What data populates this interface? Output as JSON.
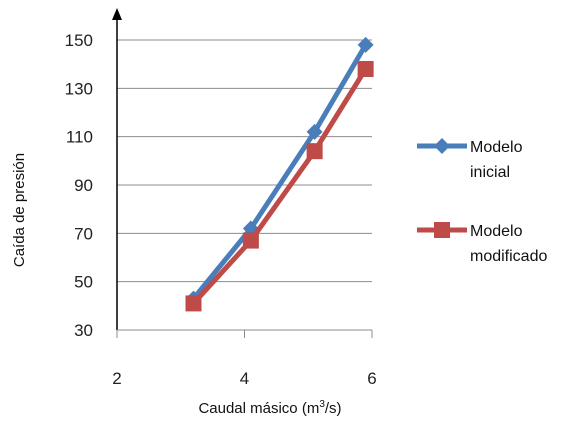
{
  "chart_data": {
    "type": "line",
    "title": "",
    "xlabel": "Caudal másico (m3/s)",
    "xlabel_parts": [
      "Caudal másico (m",
      "3",
      "/s)"
    ],
    "ylabel": "Caída de presión",
    "xlim": [
      2,
      6
    ],
    "ylim": [
      30,
      150
    ],
    "x_ticks": [
      2,
      4,
      6
    ],
    "y_ticks": [
      30,
      50,
      70,
      90,
      110,
      130,
      150
    ],
    "grid": "horizontal",
    "legend_position": "right",
    "series": [
      {
        "name": "Modelo inicial",
        "label_lines": [
          "Modelo",
          "inicial"
        ],
        "color": "#4A7EBB",
        "marker": "diamond",
        "x": [
          3.2,
          4.1,
          5.1,
          5.9
        ],
        "y": [
          43,
          72,
          112,
          148
        ]
      },
      {
        "name": "Modelo modificado",
        "label_lines": [
          "Modelo",
          "modificado"
        ],
        "color": "#BE4B48",
        "marker": "square",
        "x": [
          3.2,
          4.1,
          5.1,
          5.9
        ],
        "y": [
          41,
          67,
          104,
          138
        ]
      }
    ]
  }
}
